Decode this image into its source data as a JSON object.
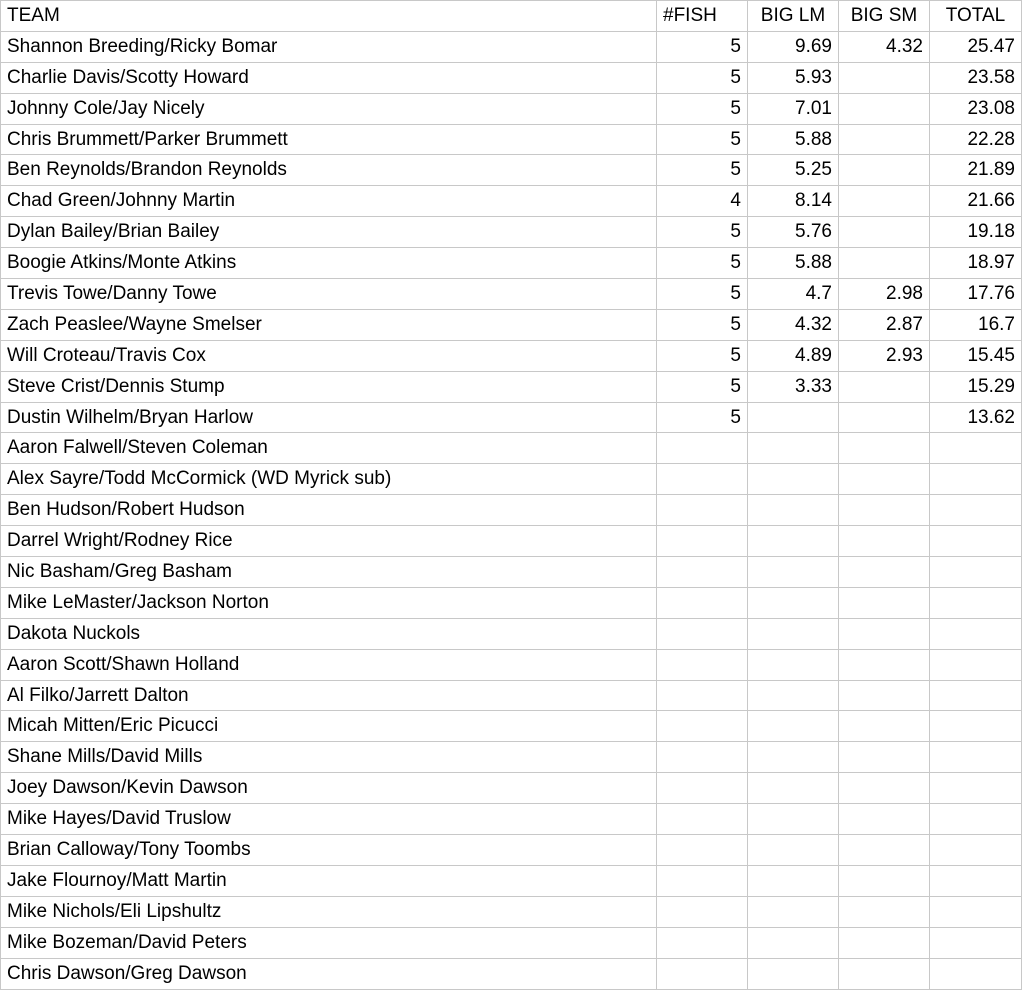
{
  "headers": [
    "TEAM",
    "#FISH",
    "BIG LM",
    "BIG SM",
    "TOTAL"
  ],
  "rows": [
    [
      "Shannon Breeding/Ricky Bomar",
      "5",
      "9.69",
      "4.32",
      "25.47"
    ],
    [
      "Charlie Davis/Scotty Howard",
      "5",
      "5.93",
      "",
      "23.58"
    ],
    [
      "Johnny Cole/Jay Nicely",
      "5",
      "7.01",
      "",
      "23.08"
    ],
    [
      "Chris Brummett/Parker Brummett",
      "5",
      "5.88",
      "",
      "22.28"
    ],
    [
      "Ben Reynolds/Brandon Reynolds",
      "5",
      "5.25",
      "",
      "21.89"
    ],
    [
      "Chad Green/Johnny Martin",
      "4",
      "8.14",
      "",
      "21.66"
    ],
    [
      "Dylan Bailey/Brian Bailey",
      "5",
      "5.76",
      "",
      "19.18"
    ],
    [
      "Boogie Atkins/Monte Atkins",
      "5",
      "5.88",
      "",
      "18.97"
    ],
    [
      "Trevis Towe/Danny Towe",
      "5",
      "4.7",
      "2.98",
      "17.76"
    ],
    [
      "Zach Peaslee/Wayne Smelser",
      "5",
      "4.32",
      "2.87",
      "16.7"
    ],
    [
      "Will Croteau/Travis Cox",
      "5",
      "4.89",
      "2.93",
      "15.45"
    ],
    [
      "Steve Crist/Dennis Stump",
      "5",
      "3.33",
      "",
      "15.29"
    ],
    [
      "Dustin Wilhelm/Bryan Harlow",
      "5",
      "",
      "",
      "13.62"
    ],
    [
      "Aaron Falwell/Steven Coleman",
      "",
      "",
      "",
      ""
    ],
    [
      "Alex Sayre/Todd McCormick (WD Myrick sub)",
      "",
      "",
      "",
      ""
    ],
    [
      "Ben Hudson/Robert Hudson",
      "",
      "",
      "",
      ""
    ],
    [
      "Darrel Wright/Rodney Rice",
      "",
      "",
      "",
      ""
    ],
    [
      "Nic Basham/Greg Basham",
      "",
      "",
      "",
      ""
    ],
    [
      "Mike LeMaster/Jackson Norton",
      "",
      "",
      "",
      ""
    ],
    [
      "Dakota Nuckols",
      "",
      "",
      "",
      ""
    ],
    [
      "Aaron Scott/Shawn Holland",
      "",
      "",
      "",
      ""
    ],
    [
      "Al Filko/Jarrett Dalton",
      "",
      "",
      "",
      ""
    ],
    [
      "Micah Mitten/Eric Picucci",
      "",
      "",
      "",
      ""
    ],
    [
      "Shane Mills/David Mills",
      "",
      "",
      "",
      ""
    ],
    [
      "Joey Dawson/Kevin Dawson",
      "",
      "",
      "",
      ""
    ],
    [
      "Mike Hayes/David Truslow",
      "",
      "",
      "",
      ""
    ],
    [
      "Brian Calloway/Tony Toombs",
      "",
      "",
      "",
      ""
    ],
    [
      "Jake Flournoy/Matt Martin",
      "",
      "",
      "",
      ""
    ],
    [
      "Mike Nichols/Eli Lipshultz",
      "",
      "",
      "",
      ""
    ],
    [
      "Mike Bozeman/David Peters",
      "",
      "",
      "",
      ""
    ],
    [
      "Chris Dawson/Greg Dawson",
      "",
      "",
      "",
      ""
    ]
  ]
}
